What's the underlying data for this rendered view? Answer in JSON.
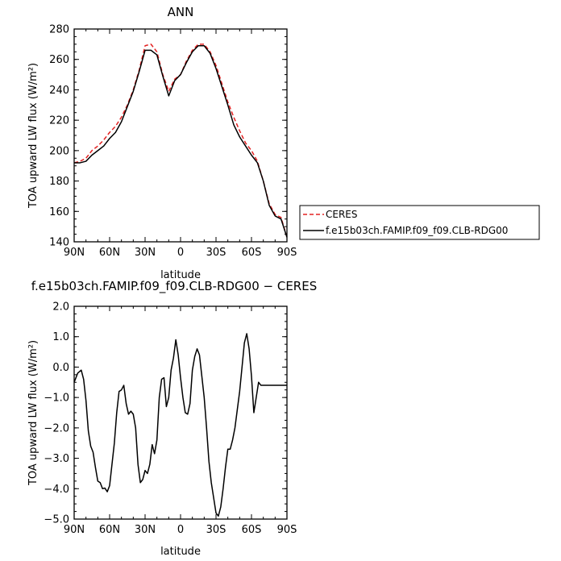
{
  "chart_data": [
    {
      "type": "line",
      "title": "ANN",
      "xlabel": "latitude",
      "ylabel": "TOA upward LW flux (W/m²)",
      "ylim": [
        140,
        280
      ],
      "yticks": [
        140,
        160,
        180,
        200,
        220,
        240,
        260,
        280
      ],
      "xlim": [
        90,
        -90
      ],
      "xticks": [
        90,
        60,
        30,
        0,
        -30,
        -60,
        -90
      ],
      "xtick_labels": [
        "90N",
        "60N",
        "30N",
        "0",
        "30S",
        "60S",
        "90S"
      ],
      "legend_position": "right-outside",
      "legend": {
        "ceres": "CERES",
        "model": "f.e15b03ch.FAMIP.f09_f09.CLB-RDG00"
      },
      "series": [
        {
          "name": "CERES",
          "color": "#e32222",
          "style": "dashed",
          "x": [
            90,
            85,
            80,
            75,
            70,
            65,
            60,
            55,
            50,
            45,
            40,
            35,
            30,
            25,
            20,
            15,
            10,
            5,
            0,
            -5,
            -10,
            -15,
            -20,
            -25,
            -30,
            -35,
            -40,
            -45,
            -50,
            -55,
            -60,
            -65,
            -70,
            -75,
            -80,
            -85,
            -90
          ],
          "y": [
            192,
            193,
            195,
            200,
            203,
            207,
            212,
            216,
            222,
            230,
            240,
            253,
            269,
            270,
            265,
            250,
            239,
            247,
            250,
            259,
            266,
            270,
            270,
            265,
            256,
            244,
            232,
            222,
            213,
            205,
            200,
            193,
            180,
            165,
            158,
            156,
            143
          ]
        },
        {
          "name": "f.e15b03ch.FAMIP.f09_f09.CLB-RDG00",
          "color": "#000000",
          "style": "solid",
          "x": [
            90,
            85,
            80,
            75,
            70,
            65,
            60,
            55,
            50,
            45,
            40,
            35,
            30,
            25,
            20,
            15,
            10,
            5,
            0,
            -5,
            -10,
            -15,
            -20,
            -25,
            -30,
            -35,
            -40,
            -45,
            -50,
            -55,
            -60,
            -65,
            -70,
            -75,
            -80,
            -85,
            -90
          ],
          "y": [
            192,
            192,
            193,
            197,
            200,
            203,
            208,
            212,
            219,
            229,
            239,
            252,
            266,
            266,
            263,
            249,
            236,
            246,
            250,
            258,
            265,
            269,
            269,
            264,
            254,
            242,
            230,
            217,
            209,
            203,
            197,
            192,
            180,
            164,
            157,
            155,
            143
          ]
        }
      ]
    },
    {
      "type": "line",
      "title": "f.e15b03ch.FAMIP.f09_f09.CLB-RDG00 − CERES",
      "xlabel": "latitude",
      "ylabel": "TOA upward LW flux (W/m²)",
      "ylim": [
        -5.0,
        2.0
      ],
      "yticks": [
        -5.0,
        -4.0,
        -3.0,
        -2.0,
        -1.0,
        0.0,
        1.0,
        2.0
      ],
      "ytick_labels": [
        "−5.0",
        "−4.0",
        "−3.0",
        "−2.0",
        "−1.0",
        "0.0",
        "1.0",
        "2.0"
      ],
      "xlim": [
        90,
        -90
      ],
      "xticks": [
        90,
        60,
        30,
        0,
        -30,
        -60,
        -90
      ],
      "xtick_labels": [
        "90N",
        "60N",
        "30N",
        "0",
        "30S",
        "60S",
        "90S"
      ],
      "series": [
        {
          "color": "#000000",
          "style": "solid",
          "x": [
            90,
            87,
            84,
            82,
            80,
            78,
            76,
            74,
            72,
            70,
            68,
            66,
            64,
            62,
            60,
            58,
            56,
            54,
            52,
            50,
            48,
            46,
            44,
            42,
            40,
            38,
            36,
            34,
            32,
            30,
            28,
            26,
            24,
            22,
            20,
            18,
            16,
            14,
            12,
            10,
            8,
            6,
            4,
            2,
            0,
            -2,
            -4,
            -6,
            -8,
            -10,
            -12,
            -14,
            -16,
            -18,
            -20,
            -22,
            -24,
            -26,
            -28,
            -30,
            -32,
            -34,
            -36,
            -38,
            -40,
            -42,
            -44,
            -46,
            -48,
            -50,
            -52,
            -54,
            -56,
            -58,
            -60,
            -62,
            -64,
            -66,
            -68,
            -70,
            -72,
            -74,
            -76,
            -78,
            -80,
            -82,
            -84,
            -86,
            -88,
            -90
          ],
          "y": [
            -0.5,
            -0.2,
            -0.1,
            -0.4,
            -1.1,
            -2.1,
            -2.6,
            -2.8,
            -3.3,
            -3.75,
            -3.8,
            -4.0,
            -3.98,
            -4.1,
            -3.9,
            -3.2,
            -2.5,
            -1.5,
            -0.8,
            -0.75,
            -0.6,
            -1.2,
            -1.55,
            -1.45,
            -1.55,
            -2.0,
            -3.2,
            -3.8,
            -3.7,
            -3.4,
            -3.5,
            -3.2,
            -2.55,
            -2.85,
            -2.4,
            -1.0,
            -0.4,
            -0.35,
            -1.3,
            -1.0,
            -0.1,
            0.3,
            0.9,
            0.4,
            -0.35,
            -1.0,
            -1.5,
            -1.55,
            -1.2,
            -0.1,
            0.35,
            0.6,
            0.4,
            -0.3,
            -1.0,
            -2.0,
            -3.1,
            -3.8,
            -4.3,
            -4.8,
            -4.9,
            -4.6,
            -4.0,
            -3.3,
            -2.7,
            -2.7,
            -2.4,
            -2.0,
            -1.4,
            -0.8,
            0.0,
            0.8,
            1.1,
            0.6,
            -0.3,
            -1.5,
            -1.0,
            -0.5,
            -0.6,
            -0.6,
            -0.6,
            -0.6,
            -0.6,
            -0.6,
            -0.6,
            -0.6,
            -0.6,
            -0.6,
            -0.6,
            -0.6
          ]
        }
      ]
    }
  ]
}
